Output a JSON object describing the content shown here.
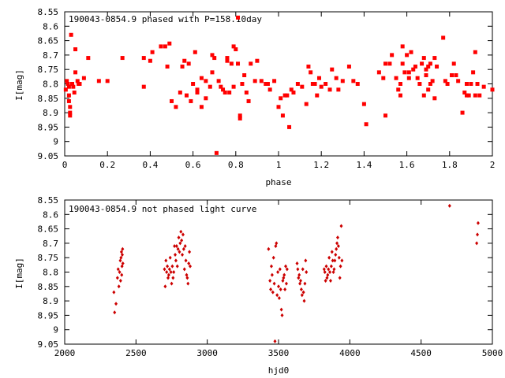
{
  "chart_data": [
    {
      "type": "scatter",
      "title": "190043-0854.9 phased with P=158.10day",
      "xlabel": "phase",
      "ylabel": "I[mag]",
      "xlim": [
        0,
        2
      ],
      "ylim": [
        9.05,
        8.55
      ],
      "y_inverted": true,
      "xticks": [
        "0",
        "0.2",
        "0.4",
        "0.6",
        "0.8",
        "1",
        "1.2",
        "1.4",
        "1.6",
        "1.8",
        "2"
      ],
      "yticks": [
        "8.55",
        "8.6",
        "8.65",
        "8.7",
        "8.75",
        "8.8",
        "8.85",
        "8.9",
        "8.95",
        "9",
        "9.05"
      ],
      "marker_color": "#ff0000",
      "marker_shape": "filled-square",
      "points": [
        [
          0.005,
          8.82
        ],
        [
          0.01,
          8.79
        ],
        [
          0.015,
          8.8
        ],
        [
          0.02,
          8.81
        ],
        [
          0.02,
          8.84
        ],
        [
          0.02,
          8.86
        ],
        [
          0.025,
          8.88
        ],
        [
          0.025,
          8.9
        ],
        [
          0.025,
          8.91
        ],
        [
          0.03,
          8.63
        ],
        [
          0.035,
          8.8
        ],
        [
          0.04,
          8.81
        ],
        [
          0.045,
          8.83
        ],
        [
          0.05,
          8.68
        ],
        [
          0.05,
          8.76
        ],
        [
          0.06,
          8.79
        ],
        [
          0.065,
          8.8
        ],
        [
          0.07,
          8.8
        ],
        [
          0.09,
          8.78
        ],
        [
          0.11,
          8.71
        ],
        [
          0.16,
          8.79
        ],
        [
          0.2,
          8.79
        ],
        [
          0.27,
          8.71
        ],
        [
          0.37,
          8.71
        ],
        [
          0.37,
          8.81
        ],
        [
          0.4,
          8.72
        ],
        [
          0.41,
          8.69
        ],
        [
          0.45,
          8.67
        ],
        [
          0.47,
          8.67
        ],
        [
          0.48,
          8.74
        ],
        [
          0.49,
          8.66
        ],
        [
          0.5,
          8.86
        ],
        [
          0.52,
          8.88
        ],
        [
          0.54,
          8.83
        ],
        [
          0.55,
          8.74
        ],
        [
          0.56,
          8.72
        ],
        [
          0.57,
          8.84
        ],
        [
          0.58,
          8.73
        ],
        [
          0.59,
          8.86
        ],
        [
          0.6,
          8.8
        ],
        [
          0.61,
          8.69
        ],
        [
          0.62,
          8.82
        ],
        [
          0.62,
          8.83
        ],
        [
          0.64,
          8.78
        ],
        [
          0.64,
          8.88
        ],
        [
          0.66,
          8.85
        ],
        [
          0.66,
          8.79
        ],
        [
          0.68,
          8.81
        ],
        [
          0.69,
          8.7
        ],
        [
          0.69,
          8.76
        ],
        [
          0.7,
          8.71
        ],
        [
          0.71,
          9.04
        ],
        [
          0.72,
          8.79
        ],
        [
          0.73,
          8.81
        ],
        [
          0.74,
          8.82
        ],
        [
          0.75,
          8.83
        ],
        [
          0.76,
          8.72
        ],
        [
          0.76,
          8.71
        ],
        [
          0.77,
          8.83
        ],
        [
          0.78,
          8.73
        ],
        [
          0.79,
          8.67
        ],
        [
          0.79,
          8.81
        ],
        [
          0.8,
          8.68
        ],
        [
          0.81,
          8.73
        ],
        [
          0.81,
          8.57
        ],
        [
          0.82,
          8.92
        ],
        [
          0.82,
          8.91
        ],
        [
          0.83,
          8.8
        ],
        [
          0.84,
          8.77
        ],
        [
          0.85,
          8.83
        ],
        [
          0.86,
          8.86
        ],
        [
          0.87,
          8.73
        ],
        [
          0.89,
          8.79
        ],
        [
          0.9,
          8.72
        ],
        [
          0.92,
          8.79
        ],
        [
          0.94,
          8.8
        ],
        [
          0.95,
          8.8
        ],
        [
          0.96,
          8.82
        ],
        [
          0.98,
          8.79
        ],
        [
          1.0,
          8.88
        ],
        [
          1.01,
          8.85
        ],
        [
          1.02,
          8.91
        ],
        [
          1.03,
          8.84
        ],
        [
          1.04,
          8.84
        ],
        [
          1.05,
          8.95
        ],
        [
          1.06,
          8.82
        ],
        [
          1.07,
          8.83
        ],
        [
          1.09,
          8.8
        ],
        [
          1.11,
          8.81
        ],
        [
          1.13,
          8.87
        ],
        [
          1.14,
          8.74
        ],
        [
          1.15,
          8.76
        ],
        [
          1.16,
          8.8
        ],
        [
          1.17,
          8.8
        ],
        [
          1.18,
          8.84
        ],
        [
          1.19,
          8.78
        ],
        [
          1.2,
          8.81
        ],
        [
          1.22,
          8.8
        ],
        [
          1.24,
          8.82
        ],
        [
          1.25,
          8.75
        ],
        [
          1.27,
          8.78
        ],
        [
          1.28,
          8.82
        ],
        [
          1.3,
          8.79
        ],
        [
          1.33,
          8.74
        ],
        [
          1.35,
          8.79
        ],
        [
          1.37,
          8.8
        ],
        [
          1.4,
          8.87
        ],
        [
          1.41,
          8.94
        ],
        [
          1.47,
          8.76
        ],
        [
          1.49,
          8.78
        ],
        [
          1.5,
          8.73
        ],
        [
          1.5,
          8.91
        ],
        [
          1.52,
          8.73
        ],
        [
          1.53,
          8.7
        ],
        [
          1.55,
          8.78
        ],
        [
          1.56,
          8.82
        ],
        [
          1.57,
          8.8
        ],
        [
          1.57,
          8.84
        ],
        [
          1.58,
          8.67
        ],
        [
          1.58,
          8.73
        ],
        [
          1.59,
          8.76
        ],
        [
          1.6,
          8.7
        ],
        [
          1.61,
          8.76
        ],
        [
          1.61,
          8.78
        ],
        [
          1.62,
          8.69
        ],
        [
          1.63,
          8.75
        ],
        [
          1.64,
          8.74
        ],
        [
          1.65,
          8.78
        ],
        [
          1.66,
          8.8
        ],
        [
          1.67,
          8.73
        ],
        [
          1.68,
          8.71
        ],
        [
          1.68,
          8.84
        ],
        [
          1.69,
          8.75
        ],
        [
          1.69,
          8.77
        ],
        [
          1.7,
          8.74
        ],
        [
          1.7,
          8.82
        ],
        [
          1.71,
          8.8
        ],
        [
          1.71,
          8.73
        ],
        [
          1.72,
          8.79
        ],
        [
          1.73,
          8.71
        ],
        [
          1.73,
          8.85
        ],
        [
          1.74,
          8.74
        ],
        [
          1.77,
          8.64
        ],
        [
          1.78,
          8.79
        ],
        [
          1.79,
          8.8
        ],
        [
          1.81,
          8.77
        ],
        [
          1.82,
          8.73
        ],
        [
          1.83,
          8.77
        ],
        [
          1.84,
          8.79
        ],
        [
          1.86,
          8.9
        ],
        [
          1.87,
          8.83
        ],
        [
          1.88,
          8.84
        ],
        [
          1.88,
          8.8
        ],
        [
          1.89,
          8.84
        ],
        [
          1.9,
          8.8
        ],
        [
          1.91,
          8.76
        ],
        [
          1.92,
          8.84
        ],
        [
          1.92,
          8.69
        ],
        [
          1.93,
          8.8
        ],
        [
          1.94,
          8.84
        ],
        [
          1.96,
          8.81
        ],
        [
          2.0,
          8.82
        ]
      ]
    },
    {
      "type": "scatter",
      "title": "190043-0854.9 not phased light curve",
      "xlabel": "hjd0",
      "ylabel": "I[mag]",
      "xlim": [
        2000,
        5000
      ],
      "ylim": [
        9.05,
        8.55
      ],
      "y_inverted": true,
      "xticks": [
        "2000",
        "2500",
        "3000",
        "3500",
        "4000",
        "4500",
        "5000"
      ],
      "yticks": [
        "8.55",
        "8.6",
        "8.65",
        "8.7",
        "8.75",
        "8.8",
        "8.85",
        "8.9",
        "8.95",
        "9",
        "9.05"
      ],
      "marker_color": "#cc0000",
      "marker_shape": "diamond",
      "points": [
        [
          2345,
          8.87
        ],
        [
          2350,
          8.94
        ],
        [
          2360,
          8.91
        ],
        [
          2370,
          8.82
        ],
        [
          2375,
          8.79
        ],
        [
          2380,
          8.85
        ],
        [
          2385,
          8.8
        ],
        [
          2390,
          8.76
        ],
        [
          2392,
          8.83
        ],
        [
          2395,
          8.75
        ],
        [
          2398,
          8.73
        ],
        [
          2400,
          8.81
        ],
        [
          2402,
          8.78
        ],
        [
          2404,
          8.74
        ],
        [
          2406,
          8.72
        ],
        [
          2408,
          8.77
        ],
        [
          2700,
          8.79
        ],
        [
          2705,
          8.85
        ],
        [
          2710,
          8.76
        ],
        [
          2715,
          8.8
        ],
        [
          2720,
          8.78
        ],
        [
          2725,
          8.82
        ],
        [
          2730,
          8.81
        ],
        [
          2735,
          8.79
        ],
        [
          2740,
          8.75
        ],
        [
          2745,
          8.8
        ],
        [
          2750,
          8.84
        ],
        [
          2755,
          8.78
        ],
        [
          2760,
          8.82
        ],
        [
          2765,
          8.8
        ],
        [
          2770,
          8.71
        ],
        [
          2775,
          8.74
        ],
        [
          2780,
          8.76
        ],
        [
          2785,
          8.71
        ],
        [
          2790,
          8.78
        ],
        [
          2795,
          8.72
        ],
        [
          2800,
          8.68
        ],
        [
          2805,
          8.73
        ],
        [
          2810,
          8.7
        ],
        [
          2815,
          8.66
        ],
        [
          2820,
          8.69
        ],
        [
          2825,
          8.74
        ],
        [
          2830,
          8.67
        ],
        [
          2835,
          8.72
        ],
        [
          2840,
          8.79
        ],
        [
          2845,
          8.71
        ],
        [
          2850,
          8.76
        ],
        [
          2855,
          8.81
        ],
        [
          2860,
          8.82
        ],
        [
          2865,
          8.84
        ],
        [
          2870,
          8.77
        ],
        [
          2875,
          8.73
        ],
        [
          2880,
          8.78
        ],
        [
          3430,
          8.72
        ],
        [
          3440,
          8.83
        ],
        [
          3445,
          8.86
        ],
        [
          3450,
          8.78
        ],
        [
          3455,
          8.81
        ],
        [
          3460,
          8.87
        ],
        [
          3465,
          8.75
        ],
        [
          3470,
          8.84
        ],
        [
          3475,
          9.04
        ],
        [
          3480,
          8.71
        ],
        [
          3485,
          8.7
        ],
        [
          3490,
          8.88
        ],
        [
          3495,
          8.8
        ],
        [
          3500,
          8.85
        ],
        [
          3505,
          8.89
        ],
        [
          3510,
          8.79
        ],
        [
          3515,
          8.86
        ],
        [
          3520,
          8.93
        ],
        [
          3525,
          8.95
        ],
        [
          3530,
          8.83
        ],
        [
          3535,
          8.82
        ],
        [
          3540,
          8.81
        ],
        [
          3545,
          8.86
        ],
        [
          3550,
          8.78
        ],
        [
          3555,
          8.84
        ],
        [
          3560,
          8.79
        ],
        [
          3630,
          8.77
        ],
        [
          3635,
          8.79
        ],
        [
          3640,
          8.82
        ],
        [
          3645,
          8.81
        ],
        [
          3650,
          8.84
        ],
        [
          3655,
          8.83
        ],
        [
          3660,
          8.86
        ],
        [
          3665,
          8.88
        ],
        [
          3670,
          8.79
        ],
        [
          3675,
          8.87
        ],
        [
          3680,
          8.9
        ],
        [
          3685,
          8.84
        ],
        [
          3690,
          8.76
        ],
        [
          3695,
          8.8
        ],
        [
          3820,
          8.79
        ],
        [
          3825,
          8.8
        ],
        [
          3830,
          8.83
        ],
        [
          3835,
          8.78
        ],
        [
          3840,
          8.82
        ],
        [
          3845,
          8.81
        ],
        [
          3850,
          8.79
        ],
        [
          3855,
          8.75
        ],
        [
          3860,
          8.8
        ],
        [
          3865,
          8.83
        ],
        [
          3870,
          8.78
        ],
        [
          3875,
          8.73
        ],
        [
          3880,
          8.76
        ],
        [
          3885,
          8.8
        ],
        [
          3890,
          8.79
        ],
        [
          3895,
          8.76
        ],
        [
          3900,
          8.74
        ],
        [
          3905,
          8.72
        ],
        [
          3910,
          8.7
        ],
        [
          3915,
          8.68
        ],
        [
          3920,
          8.71
        ],
        [
          3925,
          8.75
        ],
        [
          3930,
          8.82
        ],
        [
          3935,
          8.78
        ],
        [
          3940,
          8.64
        ],
        [
          3945,
          8.76
        ],
        [
          4700,
          8.57
        ],
        [
          4890,
          8.7
        ],
        [
          4895,
          8.67
        ],
        [
          4900,
          8.63
        ]
      ]
    }
  ]
}
